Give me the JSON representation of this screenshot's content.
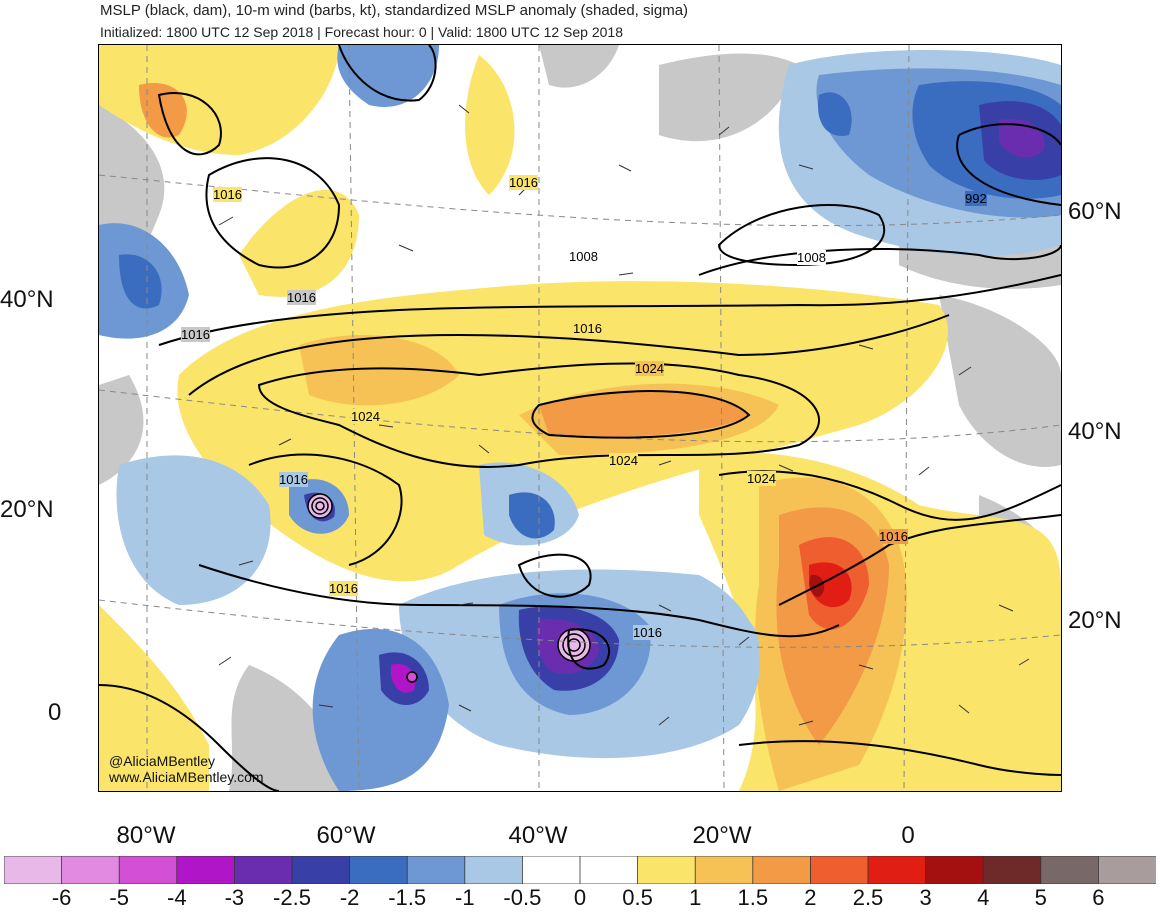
{
  "header": {
    "title": "MSLP (black, dam), 10-m wind (barbs, kt), standardized MSLP anomaly (shaded, sigma)",
    "subtitle": "Initialized: 1800 UTC 12 Sep 2018 | Forecast hour: 0 | Valid: 1800 UTC 12 Sep 2018"
  },
  "map": {
    "lat_labels_left": [
      "40°N",
      "20°N",
      "0"
    ],
    "lat_labels_right": [
      "60°N",
      "40°N",
      "20°N"
    ],
    "lon_labels": [
      "80°W",
      "60°W",
      "40°W",
      "20°W",
      "0"
    ],
    "contour_labels": [
      "1016",
      "1016",
      "1016",
      "1016",
      "1008",
      "1008",
      "992",
      "1016",
      "1024",
      "1024",
      "1024",
      "1024",
      "1016",
      "1016",
      "1016",
      "1016",
      "1016",
      "1016"
    ]
  },
  "credits": {
    "handle": "@AliciaMBentley",
    "website": "www.AliciaMBentley.com"
  },
  "colorbar": {
    "ticks": [
      "-6",
      "-5",
      "-4",
      "-3",
      "-2.5",
      "-2",
      "-1.5",
      "-1",
      "-0.5",
      "0",
      "0.5",
      "1",
      "1.5",
      "2",
      "2.5",
      "3",
      "4",
      "5",
      "6"
    ],
    "colors": [
      "#e8b8e8",
      "#e28ae2",
      "#d24fd6",
      "#b016c8",
      "#6a2db0",
      "#3840a8",
      "#3a6cc0",
      "#6e98d4",
      "#a8c8e6",
      "#ffffff",
      "#ffffff",
      "#fbe46a",
      "#f6c256",
      "#f29a46",
      "#ee5e2e",
      "#e01e14",
      "#a40f0f",
      "#6e2a28",
      "#786868",
      "#a89c9c"
    ]
  }
}
